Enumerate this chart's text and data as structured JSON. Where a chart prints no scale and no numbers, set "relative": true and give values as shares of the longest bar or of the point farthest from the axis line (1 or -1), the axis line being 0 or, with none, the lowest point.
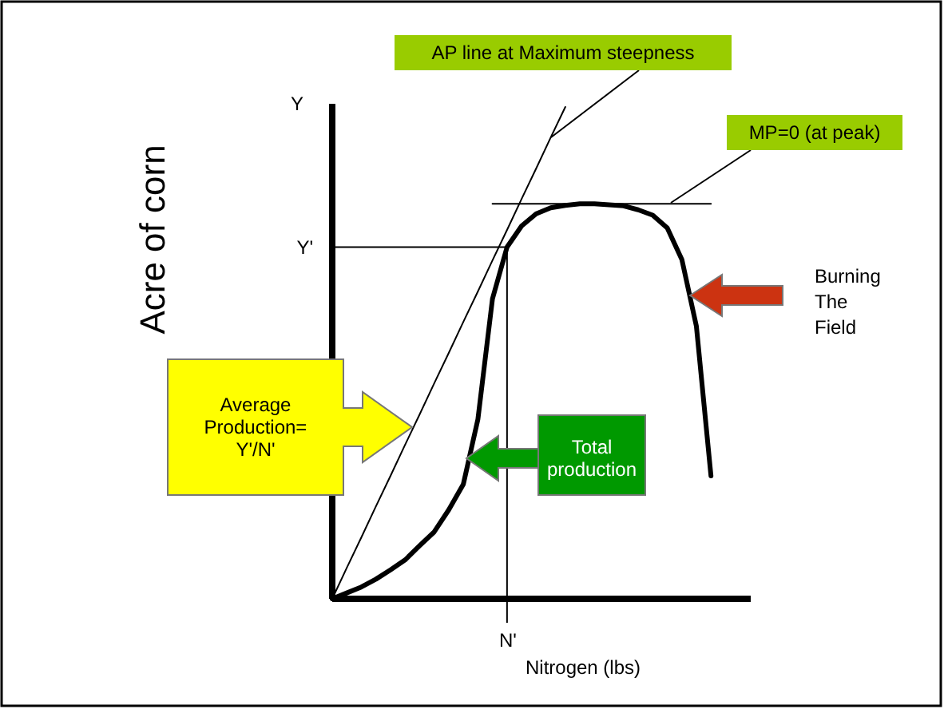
{
  "chart_data": {
    "type": "line",
    "relative": true,
    "xlabel": "Nitrogen (lbs)",
    "ylabel": "Acre of corn",
    "grid": false,
    "marker": "none",
    "categories": [
      null,
      null,
      null,
      null,
      null,
      null,
      null,
      null,
      null,
      null,
      null,
      null,
      null,
      null,
      null,
      null,
      null,
      null,
      null,
      null,
      null,
      null,
      null,
      null,
      null,
      null,
      null
    ],
    "series": [
      {
        "color": "#000000",
        "values": [
          0,
          0.012,
          0.024,
          0.04,
          0.059,
          0.079,
          0.108,
          0.136,
          0.181,
          0.233,
          0.365,
          0.61,
          0.715,
          0.758,
          0.783,
          0.795,
          0.8,
          0.803,
          0.803,
          0.801,
          0.799,
          0.791,
          0.78,
          0.754,
          0.69,
          0.554,
          0.25
        ]
      },
      {
        "color": "#000000",
        "values": [
          0,
          0.063,
          0.125,
          0.188,
          0.25,
          0.313,
          0.375,
          0.438,
          0.5,
          0.563,
          0.625,
          0.688,
          0.75,
          0.813,
          0.875,
          0.938,
          1,
          null,
          null,
          null,
          null,
          null,
          null,
          null,
          null,
          null,
          null
        ]
      },
      {
        "color": "#000000",
        "values": [
          null,
          null,
          null,
          null,
          null,
          null,
          null,
          null,
          null,
          null,
          null,
          0.803,
          0.803,
          0.803,
          0.803,
          0.803,
          0.803,
          0.803,
          0.803,
          0.803,
          0.803,
          0.803,
          0.803,
          0.803,
          0.803,
          0.803,
          0.803
        ]
      }
    ],
    "ref_lines": [
      {
        "axis": "y",
        "value": 0.715,
        "label": "Y'"
      }
    ],
    "annotations": [
      "AP line at Maximum steepness",
      "MP=0 (at peak)",
      "Average Production= Y'/N'",
      "Total production",
      "Burning The Field",
      "Y",
      "N'"
    ]
  }
}
